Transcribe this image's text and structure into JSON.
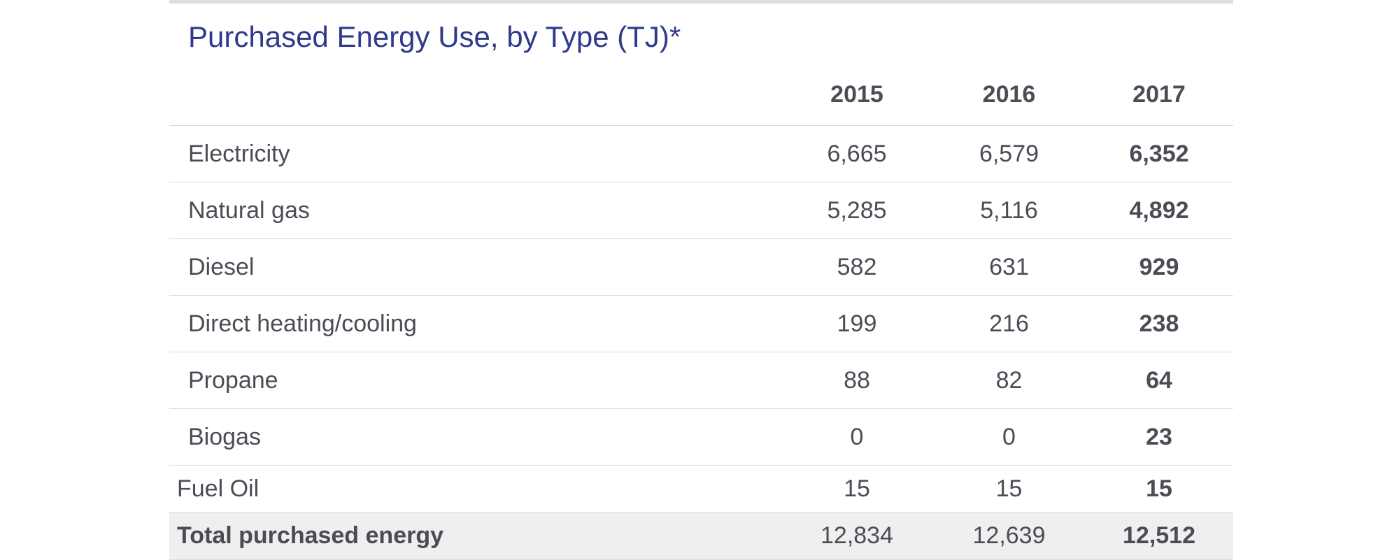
{
  "table": {
    "title": "Purchased Energy Use, by Type (TJ)*",
    "columns": [
      "",
      "2015",
      "2016",
      "2017"
    ],
    "rows": [
      {
        "label": "Electricity",
        "values": [
          "6,665",
          "6,579",
          "6,352"
        ]
      },
      {
        "label": "Natural gas",
        "values": [
          "5,285",
          "5,116",
          "4,892"
        ]
      },
      {
        "label": "Diesel",
        "values": [
          "582",
          "631",
          "929"
        ]
      },
      {
        "label": "Direct heating/cooling",
        "values": [
          "199",
          "216",
          "238"
        ]
      },
      {
        "label": "Propane",
        "values": [
          "88",
          "82",
          "64"
        ]
      },
      {
        "label": "Biogas",
        "values": [
          "0",
          "0",
          "23"
        ]
      },
      {
        "label": "Fuel Oil",
        "values": [
          "15",
          "15",
          "15"
        ]
      }
    ],
    "total": {
      "label": "Total purchased energy",
      "values": [
        "12,834",
        "12,639",
        "12,512"
      ]
    }
  }
}
